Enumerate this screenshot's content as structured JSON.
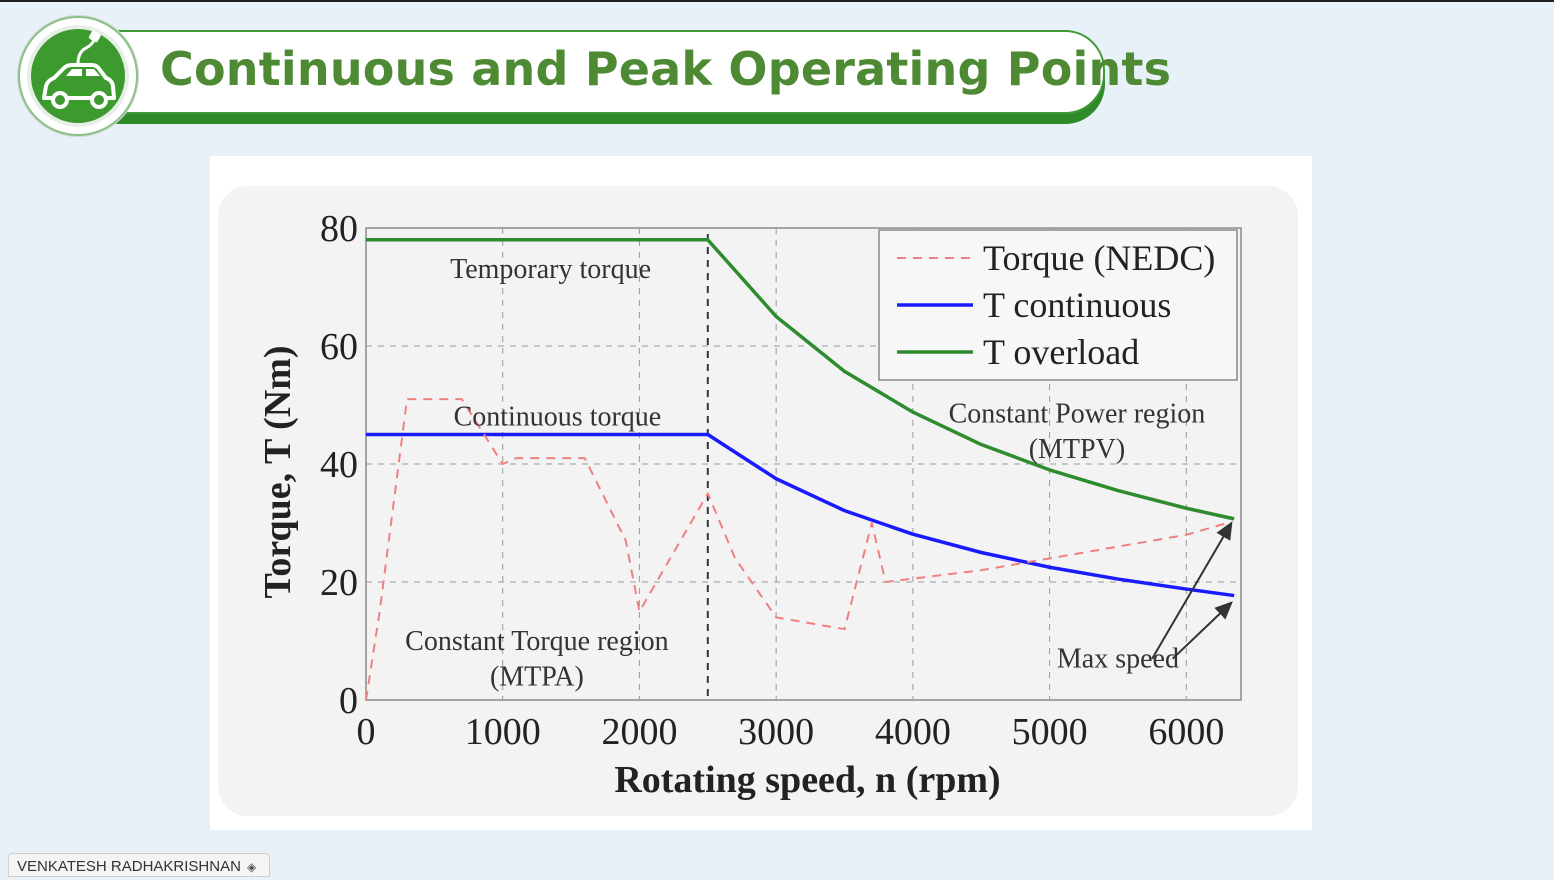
{
  "slide": {
    "title": "Continuous and Peak Operating Points",
    "logo_icon": "ev-car-plug-icon",
    "presenter": "VENKATESH RADHAKRISHNAN",
    "presenter_icon": "pin-icon",
    "colors": {
      "brand_green": "#4d8a33",
      "banner_border": "#3f9a36",
      "background": "#e8f0f8"
    }
  },
  "chart_data": {
    "type": "line",
    "xlabel": "Rotating speed, n (rpm)",
    "ylabel": "Torque, T (Nm)",
    "xlim": [
      0,
      6400
    ],
    "ylim": [
      0,
      80
    ],
    "xticks": [
      0,
      1000,
      2000,
      3000,
      4000,
      5000,
      6000
    ],
    "yticks": [
      0,
      20,
      40,
      60,
      80
    ],
    "grid": true,
    "legend_position": "top-right",
    "legend": [
      "Torque (NEDC)",
      "T continuous",
      "T overload"
    ],
    "series": [
      {
        "name": "T continuous",
        "color": "#1a1aff",
        "style": "solid",
        "x": [
          0,
          2500,
          3000,
          3500,
          4000,
          4500,
          5000,
          5500,
          6000,
          6350
        ],
        "y": [
          45,
          45,
          37.5,
          32.1,
          28.1,
          25,
          22.5,
          20.5,
          18.8,
          17.7
        ]
      },
      {
        "name": "T overload",
        "color": "#2e8b2e",
        "style": "solid",
        "x": [
          0,
          2500,
          3000,
          3500,
          4000,
          4500,
          5000,
          5500,
          6000,
          6350
        ],
        "y": [
          78,
          78,
          65,
          55.7,
          48.8,
          43.3,
          39,
          35.5,
          32.5,
          30.7
        ]
      },
      {
        "name": "Torque (NEDC)",
        "color": "#f08080",
        "style": "dashed",
        "x": [
          0,
          100,
          300,
          700,
          1000,
          1100,
          1600,
          1900,
          2000,
          2500,
          2700,
          3000,
          3500,
          3700,
          3800,
          4500,
          5000,
          5500,
          6000,
          6300
        ],
        "y": [
          0,
          15,
          51,
          51,
          40,
          41,
          41,
          27,
          15,
          35,
          24,
          14,
          12,
          30,
          20,
          22,
          24,
          26,
          28,
          30
        ]
      }
    ],
    "annotations": [
      "Temporary torque",
      "Continuous torque",
      "Constant Torque region",
      "(MTPA)",
      "Constant Power region",
      "(MTPV)",
      "Max speed"
    ]
  }
}
